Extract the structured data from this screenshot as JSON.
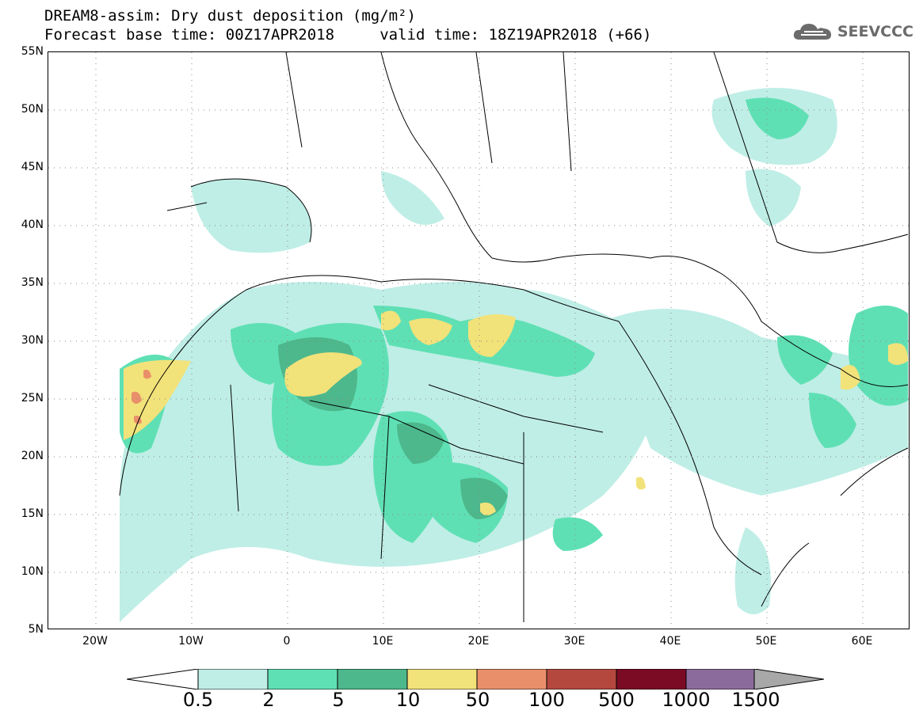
{
  "title": {
    "line1": "DREAM8-assim: Dry dust deposition (mg/m²)",
    "line2": "Forecast base time: 00Z17APR2018     valid time: 18Z19APR2018 (+66)"
  },
  "logo": {
    "text": "SEEVCCC",
    "icon": "cloud-icon"
  },
  "map": {
    "lat_labels": [
      "55N",
      "50N",
      "45N",
      "40N",
      "35N",
      "30N",
      "25N",
      "20N",
      "15N",
      "10N",
      "5N"
    ],
    "lon_labels": [
      "20W",
      "10W",
      "0",
      "10E",
      "20E",
      "30E",
      "40E",
      "50E",
      "60E"
    ],
    "lat_range": [
      5,
      55
    ],
    "lon_range": [
      -25,
      65
    ],
    "grid": "dotted"
  },
  "legend": {
    "labels": [
      "0.5",
      "2",
      "5",
      "10",
      "50",
      "100",
      "500",
      "1000",
      "1500"
    ],
    "colors": [
      "#bfeee6",
      "#5fe0b4",
      "#4db88c",
      "#f2e27a",
      "#e9906a",
      "#b5483e",
      "#7b0b24",
      "#8b6b9c",
      "#a8a8a8"
    ],
    "left_arrow_color": "#ffffff",
    "right_arrow_color": "#a8a8a8"
  },
  "regions": {
    "light": "#bfeee6",
    "medium": "#5fe0b4",
    "dark": "#4db88c",
    "yellow": "#f2e27a",
    "orange": "#e9906a"
  }
}
